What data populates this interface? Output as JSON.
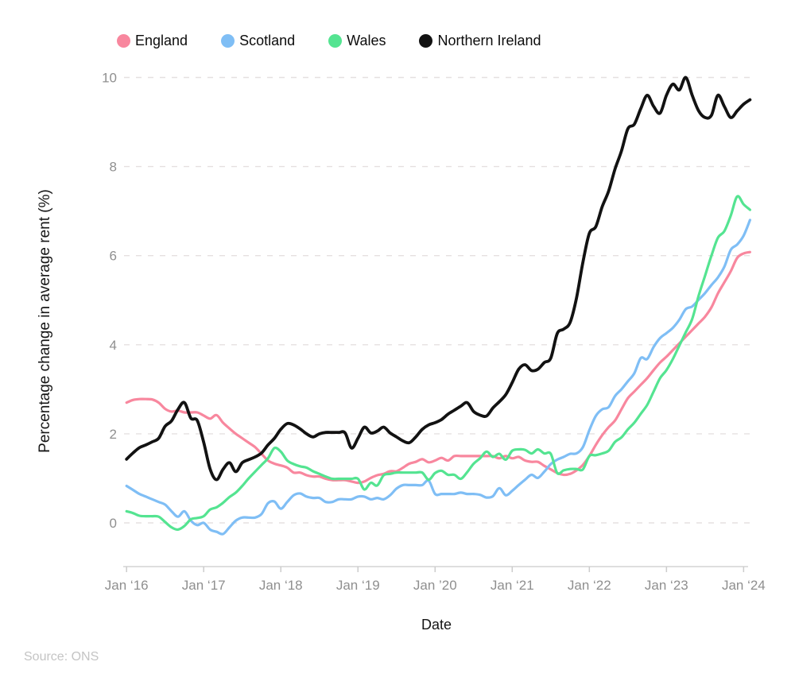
{
  "legend": {
    "items": [
      {
        "label": "England",
        "color": "#F8879E"
      },
      {
        "label": "Scotland",
        "color": "#7FBEF5"
      },
      {
        "label": "Wales",
        "color": "#54E491"
      },
      {
        "label": "Northern Ireland",
        "color": "#121212"
      }
    ]
  },
  "axes": {
    "y_title": "Percentage change in average rent (%)",
    "x_title": "Date",
    "y_ticks": [
      0,
      2,
      4,
      6,
      8,
      10
    ],
    "x_ticks": [
      "Jan ‘16",
      "Jan ‘17",
      "Jan ‘18",
      "Jan ‘19",
      "Jan ’20",
      "Jan ‘21",
      "Jan ‘22",
      "Jan ‘23",
      "Jan ‘24"
    ]
  },
  "source": "Source: ONS",
  "chart_data": {
    "type": "line",
    "title": "",
    "xlabel": "Date",
    "ylabel": "Percentage change in average rent (%)",
    "x_start": "Jan 2016",
    "x_end": "Feb 2024",
    "frequency": "monthly",
    "ylim": [
      -0.6,
      10.4
    ],
    "grid": "horizontal-dashed",
    "legend_position": "top",
    "x_tick_labels": [
      "Jan ‘16",
      "Jan ‘17",
      "Jan ‘18",
      "Jan ‘19",
      "Jan ’20",
      "Jan ‘21",
      "Jan ‘22",
      "Jan ‘23",
      "Jan ‘24"
    ],
    "y_tick_values": [
      0,
      2,
      4,
      6,
      8,
      10
    ],
    "series": [
      {
        "name": "England",
        "color": "#F8879E",
        "values": [
          2.7,
          2.76,
          2.78,
          2.78,
          2.77,
          2.7,
          2.56,
          2.5,
          2.52,
          2.48,
          2.48,
          2.48,
          2.41,
          2.34,
          2.42,
          2.25,
          2.12,
          2.0,
          1.9,
          1.8,
          1.7,
          1.55,
          1.4,
          1.33,
          1.29,
          1.24,
          1.13,
          1.13,
          1.07,
          1.04,
          1.04,
          0.99,
          0.96,
          0.96,
          0.96,
          0.93,
          0.9,
          0.93,
          1.01,
          1.07,
          1.1,
          1.16,
          1.16,
          1.24,
          1.33,
          1.37,
          1.43,
          1.36,
          1.4,
          1.46,
          1.4,
          1.5,
          1.5,
          1.5,
          1.5,
          1.5,
          1.5,
          1.5,
          1.45,
          1.5,
          1.45,
          1.48,
          1.4,
          1.37,
          1.37,
          1.28,
          1.2,
          1.12,
          1.08,
          1.1,
          1.18,
          1.3,
          1.5,
          1.75,
          1.97,
          2.15,
          2.3,
          2.55,
          2.8,
          2.95,
          3.1,
          3.25,
          3.43,
          3.6,
          3.73,
          3.88,
          4.03,
          4.18,
          4.33,
          4.48,
          4.63,
          4.84,
          5.15,
          5.4,
          5.65,
          5.95,
          6.05,
          6.08
        ]
      },
      {
        "name": "Scotland",
        "color": "#7FBEF5",
        "values": [
          0.83,
          0.74,
          0.65,
          0.59,
          0.53,
          0.47,
          0.41,
          0.26,
          0.14,
          0.26,
          0.05,
          -0.05,
          0.0,
          -0.15,
          -0.2,
          -0.25,
          -0.1,
          0.05,
          0.12,
          0.12,
          0.12,
          0.2,
          0.44,
          0.48,
          0.32,
          0.47,
          0.62,
          0.66,
          0.59,
          0.56,
          0.56,
          0.47,
          0.47,
          0.53,
          0.53,
          0.53,
          0.59,
          0.59,
          0.53,
          0.56,
          0.53,
          0.62,
          0.77,
          0.85,
          0.85,
          0.85,
          0.85,
          0.95,
          0.65,
          0.65,
          0.65,
          0.65,
          0.68,
          0.65,
          0.65,
          0.63,
          0.57,
          0.6,
          0.78,
          0.62,
          0.72,
          0.85,
          0.97,
          1.08,
          1.01,
          1.15,
          1.32,
          1.42,
          1.48,
          1.55,
          1.56,
          1.7,
          2.08,
          2.4,
          2.55,
          2.6,
          2.85,
          3.0,
          3.18,
          3.36,
          3.7,
          3.68,
          3.95,
          4.15,
          4.26,
          4.38,
          4.56,
          4.8,
          4.86,
          5.01,
          5.16,
          5.34,
          5.51,
          5.75,
          6.13,
          6.25,
          6.45,
          6.8
        ]
      },
      {
        "name": "Wales",
        "color": "#54E491",
        "values": [
          0.26,
          0.22,
          0.16,
          0.15,
          0.15,
          0.14,
          0.02,
          -0.1,
          -0.15,
          -0.07,
          0.08,
          0.11,
          0.15,
          0.3,
          0.35,
          0.45,
          0.58,
          0.68,
          0.83,
          1.0,
          1.15,
          1.3,
          1.45,
          1.68,
          1.6,
          1.4,
          1.32,
          1.27,
          1.24,
          1.16,
          1.1,
          1.04,
          0.99,
          0.99,
          0.99,
          0.99,
          0.99,
          0.75,
          0.9,
          0.84,
          1.07,
          1.1,
          1.13,
          1.13,
          1.13,
          1.13,
          1.13,
          0.97,
          1.12,
          1.17,
          1.08,
          1.08,
          0.99,
          1.14,
          1.33,
          1.45,
          1.6,
          1.48,
          1.55,
          1.42,
          1.62,
          1.65,
          1.64,
          1.56,
          1.65,
          1.56,
          1.55,
          1.12,
          1.18,
          1.21,
          1.21,
          1.2,
          1.5,
          1.52,
          1.56,
          1.62,
          1.82,
          1.92,
          2.1,
          2.25,
          2.45,
          2.65,
          2.95,
          3.25,
          3.43,
          3.68,
          3.98,
          4.28,
          4.58,
          5.1,
          5.55,
          6.0,
          6.4,
          6.55,
          6.9,
          7.33,
          7.15,
          7.03
        ]
      },
      {
        "name": "Northern Ireland",
        "color": "#121212",
        "values": [
          1.43,
          1.57,
          1.69,
          1.75,
          1.82,
          1.9,
          2.17,
          2.29,
          2.55,
          2.7,
          2.35,
          2.3,
          1.81,
          1.21,
          0.97,
          1.2,
          1.35,
          1.15,
          1.35,
          1.42,
          1.48,
          1.57,
          1.75,
          1.9,
          2.1,
          2.23,
          2.2,
          2.11,
          2.0,
          1.93,
          2.0,
          2.03,
          2.03,
          2.03,
          2.02,
          1.68,
          1.9,
          2.15,
          2.02,
          2.06,
          2.15,
          2.02,
          1.93,
          1.84,
          1.8,
          1.93,
          2.1,
          2.2,
          2.25,
          2.32,
          2.44,
          2.53,
          2.62,
          2.7,
          2.5,
          2.42,
          2.4,
          2.58,
          2.72,
          2.88,
          3.15,
          3.45,
          3.55,
          3.42,
          3.45,
          3.6,
          3.7,
          4.25,
          4.35,
          4.5,
          5.05,
          5.85,
          6.5,
          6.65,
          7.1,
          7.45,
          7.95,
          8.35,
          8.85,
          8.95,
          9.3,
          9.6,
          9.35,
          9.2,
          9.6,
          9.85,
          9.72,
          10.0,
          9.6,
          9.25,
          9.1,
          9.15,
          9.6,
          9.35,
          9.1,
          9.25,
          9.4,
          9.5
        ]
      }
    ]
  }
}
